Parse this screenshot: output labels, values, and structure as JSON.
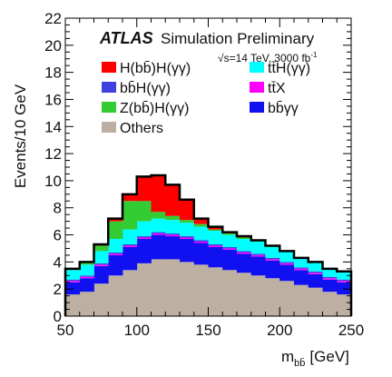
{
  "chart_data": {
    "type": "area",
    "stacked": true,
    "histogram": true,
    "x_edges": [
      50,
      60,
      70,
      80,
      90,
      100,
      110,
      120,
      130,
      140,
      150,
      160,
      170,
      180,
      190,
      200,
      210,
      220,
      230,
      240,
      250
    ],
    "xlim": [
      50,
      250
    ],
    "ylim": [
      0,
      22
    ],
    "xticks": [
      "50",
      "100",
      "150",
      "200",
      "250"
    ],
    "yticks": [
      "0",
      "2",
      "4",
      "6",
      "8",
      "10",
      "12",
      "14",
      "16",
      "18",
      "20",
      "22"
    ],
    "xlabel": "m",
    "xlabel_sub": "bb̄",
    "xlabel_unit": "[GeV]",
    "ylabel": "Events/10 GeV",
    "experiment_label": "ATLAS",
    "status_label": "Simulation Preliminary",
    "energy_label": "√s=14 TeV, 3000 fb",
    "energy_label_sup": "-1",
    "legend_placement": "top-right",
    "series": [
      {
        "name": "Others",
        "color": "#bdb0a3",
        "values": [
          1.6,
          1.8,
          2.4,
          3.0,
          3.4,
          3.9,
          4.2,
          4.2,
          4.0,
          3.8,
          3.6,
          3.4,
          3.2,
          3.0,
          2.8,
          2.6,
          2.3,
          2.1,
          1.8,
          1.6
        ]
      },
      {
        "name": "bb̄γγ",
        "color": "#1010f0",
        "values": [
          0.9,
          1.0,
          1.3,
          1.5,
          1.7,
          1.8,
          1.8,
          1.7,
          1.7,
          1.6,
          1.5,
          1.5,
          1.4,
          1.4,
          1.3,
          1.2,
          1.1,
          1.0,
          0.9,
          0.9
        ]
      },
      {
        "name": "tt̄X",
        "color": "#ff00ff",
        "values": [
          0.1,
          0.1,
          0.1,
          0.1,
          0.1,
          0.1,
          0.1,
          0.1,
          0.1,
          0.1,
          0.1,
          0.1,
          0.1,
          0.1,
          0.1,
          0.1,
          0.1,
          0.1,
          0.1,
          0.1
        ]
      },
      {
        "name": "bb̄H(γγ)",
        "color": "#4040e0",
        "values": [
          0.1,
          0.1,
          0.1,
          0.1,
          0.1,
          0.1,
          0.1,
          0.1,
          0.1,
          0.1,
          0.1,
          0.1,
          0.1,
          0.1,
          0.1,
          0.1,
          0.1,
          0.1,
          0.1,
          0.1
        ]
      },
      {
        "name": "tt̄H(γγ)",
        "color": "#00ffff",
        "values": [
          0.7,
          0.8,
          0.9,
          1.0,
          1.1,
          1.1,
          1.0,
          1.0,
          1.0,
          1.0,
          1.0,
          0.9,
          0.9,
          0.9,
          0.8,
          0.8,
          0.7,
          0.7,
          0.6,
          0.6
        ]
      },
      {
        "name": "Z(bb̄)H(γγ)",
        "color": "#33cc33",
        "values": [
          0.1,
          0.2,
          0.4,
          1.3,
          2.1,
          1.5,
          0.5,
          0.3,
          0.2,
          0.2,
          0.1,
          0.1,
          0.1,
          0.1,
          0.1,
          0.0,
          0.0,
          0.0,
          0.0,
          0.0
        ]
      },
      {
        "name": "H(bb̄)H(γγ)",
        "color": "#ff0000",
        "values": [
          0.0,
          0.0,
          0.1,
          0.2,
          0.5,
          1.8,
          2.7,
          2.3,
          1.5,
          0.4,
          0.2,
          0.1,
          0.1,
          0.0,
          0.0,
          0.0,
          0.0,
          0.0,
          0.0,
          0.0
        ]
      }
    ],
    "legend_order": [
      6,
      4,
      3,
      2,
      5,
      1,
      0
    ]
  }
}
